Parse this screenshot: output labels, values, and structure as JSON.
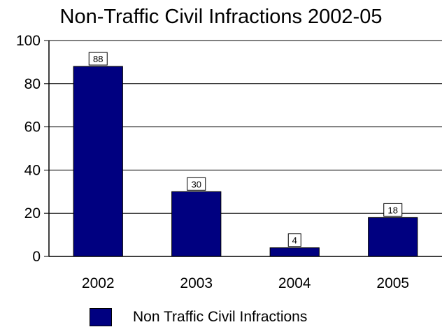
{
  "chart_data": {
    "type": "bar",
    "title": "Non-Traffic Civil Infractions 2002-05",
    "categories": [
      "2002",
      "2003",
      "2004",
      "2005"
    ],
    "series": [
      {
        "name": "Non Traffic Civil Infractions",
        "values": [
          88,
          30,
          4,
          18
        ],
        "color": "#000080"
      }
    ],
    "xlabel": "",
    "ylabel": "",
    "ylim": [
      0,
      100
    ],
    "yticks": [
      0,
      20,
      40,
      60,
      80,
      100
    ],
    "grid": true,
    "legend_position": "bottom-left"
  }
}
